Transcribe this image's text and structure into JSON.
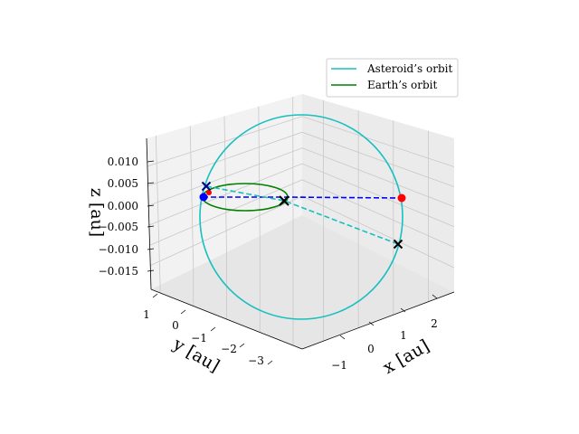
{
  "chart_data": {
    "type": "line3d",
    "title": "",
    "axes": {
      "x": {
        "label": "x [au]",
        "ticks": [
          "−1",
          "0",
          "1",
          "2"
        ]
      },
      "y": {
        "label": "y [au]",
        "ticks": [
          "1",
          "0",
          "−1",
          "−2",
          "−3"
        ]
      },
      "z": {
        "label": "z [au]",
        "ticks": [
          "0.010",
          "0.005",
          "0.000",
          "−0.005",
          "−0.010",
          "−0.015"
        ]
      }
    },
    "legend": {
      "placement": "top-right",
      "entries": [
        {
          "label": "Asteroid’s orbit",
          "color": "#17bfbf"
        },
        {
          "label": "Earth’s orbit",
          "color": "#008000"
        }
      ]
    },
    "series": [
      {
        "name": "Asteroid's orbit",
        "kind": "ellipse",
        "color": "#17bfbf"
      },
      {
        "name": "Earth's orbit",
        "kind": "ellipse",
        "color": "#008000"
      },
      {
        "name": "Blue dashed line",
        "kind": "dashed",
        "color": "#0000ff"
      },
      {
        "name": "Cyan dashed line",
        "kind": "dashed",
        "color": "#17bfbf"
      }
    ],
    "markers": [
      {
        "name": "blue-point",
        "shape": "dot",
        "color": "#0000ff"
      },
      {
        "name": "red-point-left",
        "shape": "dot",
        "color": "#ff0000"
      },
      {
        "name": "red-point-right",
        "shape": "dot",
        "color": "#ff0000"
      },
      {
        "name": "x-marker-top",
        "shape": "x",
        "color": "#00008b"
      },
      {
        "name": "x-marker-center",
        "shape": "x",
        "color": "#000000"
      },
      {
        "name": "x-marker-right",
        "shape": "x",
        "color": "#000000"
      }
    ]
  }
}
